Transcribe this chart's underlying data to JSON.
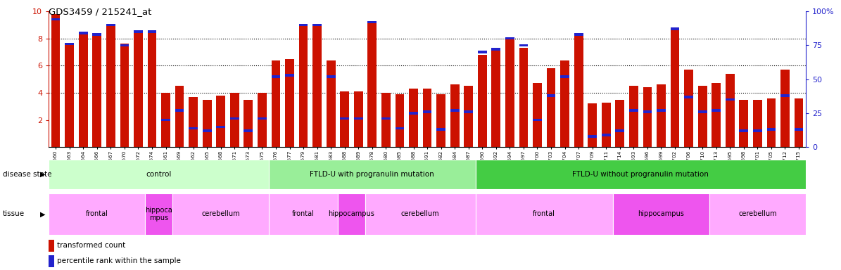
{
  "title": "GDS3459 / 215241_at",
  "gsm_ids": [
    "GSM329660",
    "GSM329663",
    "GSM329664",
    "GSM329666",
    "GSM329667",
    "GSM329670",
    "GSM329672",
    "GSM329674",
    "GSM329661",
    "GSM329669",
    "GSM329662",
    "GSM329665",
    "GSM329668",
    "GSM329671",
    "GSM329673",
    "GSM329675",
    "GSM329676",
    "GSM329677",
    "GSM329679",
    "GSM329681",
    "GSM329683",
    "GSM329688",
    "GSM329689",
    "GSM329678",
    "GSM329680",
    "GSM329685",
    "GSM329688",
    "GSM329691",
    "GSM329682",
    "GSM329684",
    "GSM329687",
    "GSM329690",
    "GSM329692",
    "GSM329694",
    "GSM329697",
    "GSM329700",
    "GSM329703",
    "GSM329704",
    "GSM329707",
    "GSM329709",
    "GSM329711",
    "GSM329714",
    "GSM329693",
    "GSM329696",
    "GSM329699",
    "GSM329702",
    "GSM329706",
    "GSM329710",
    "GSM329713",
    "GSM329695",
    "GSM329698",
    "GSM329701",
    "GSM329705",
    "GSM329712",
    "GSM329715"
  ],
  "red_values": [
    9.8,
    7.7,
    8.3,
    8.3,
    8.9,
    7.6,
    8.5,
    8.5,
    4.0,
    4.5,
    3.7,
    3.5,
    3.8,
    4.0,
    3.5,
    4.0,
    6.4,
    6.5,
    9.0,
    8.9,
    6.4,
    4.1,
    4.1,
    9.2,
    4.0,
    3.9,
    4.3,
    4.3,
    3.9,
    4.6,
    4.5,
    6.8,
    7.1,
    8.0,
    7.3,
    4.7,
    5.8,
    6.4,
    8.2,
    3.2,
    3.3,
    3.5,
    4.5,
    4.4,
    4.6,
    8.6,
    5.7,
    4.5,
    4.7,
    5.4,
    3.5,
    3.5,
    3.6,
    5.7,
    3.6
  ],
  "percentile_blue": [
    94,
    76,
    84,
    83,
    90,
    75,
    85,
    85,
    20,
    27,
    14,
    12,
    15,
    21,
    12,
    21,
    52,
    53,
    90,
    90,
    52,
    21,
    21,
    92,
    21,
    14,
    25,
    26,
    13,
    27,
    26,
    70,
    72,
    80,
    75,
    20,
    38,
    52,
    83,
    8,
    9,
    12,
    27,
    26,
    27,
    87,
    37,
    26,
    27,
    35,
    12,
    12,
    13,
    38,
    13
  ],
  "disease_groups": [
    {
      "label": "control",
      "start": 0,
      "end": 15,
      "color": "#CCFFCC"
    },
    {
      "label": "FTLD-U with progranulin mutation",
      "start": 16,
      "end": 30,
      "color": "#99EE99"
    },
    {
      "label": "FTLD-U without progranulin mutation",
      "start": 31,
      "end": 54,
      "color": "#44CC44"
    }
  ],
  "tissue_groups": [
    {
      "label": "frontal",
      "start": 0,
      "end": 6,
      "color": "#FFAAFF"
    },
    {
      "label": "hippoca\nmpus",
      "start": 7,
      "end": 8,
      "color": "#EE55EE"
    },
    {
      "label": "cerebellum",
      "start": 9,
      "end": 15,
      "color": "#FFAAFF"
    },
    {
      "label": "frontal",
      "start": 16,
      "end": 20,
      "color": "#FFAAFF"
    },
    {
      "label": "hippocampus",
      "start": 21,
      "end": 22,
      "color": "#EE55EE"
    },
    {
      "label": "cerebellum",
      "start": 23,
      "end": 30,
      "color": "#FFAAFF"
    },
    {
      "label": "frontal",
      "start": 31,
      "end": 40,
      "color": "#FFAAFF"
    },
    {
      "label": "hippocampus",
      "start": 41,
      "end": 47,
      "color": "#EE55EE"
    },
    {
      "label": "cerebellum",
      "start": 48,
      "end": 54,
      "color": "#FFAAFF"
    }
  ],
  "ylim_left": [
    0,
    10
  ],
  "ylim_right": [
    0,
    100
  ],
  "yticks_left": [
    2,
    4,
    6,
    8,
    10
  ],
  "yticks_right": [
    0,
    25,
    50,
    75,
    100
  ],
  "bar_color": "#CC1100",
  "blue_color": "#2222CC",
  "left_axis_color": "#CC1100",
  "right_axis_color": "#2222CC"
}
